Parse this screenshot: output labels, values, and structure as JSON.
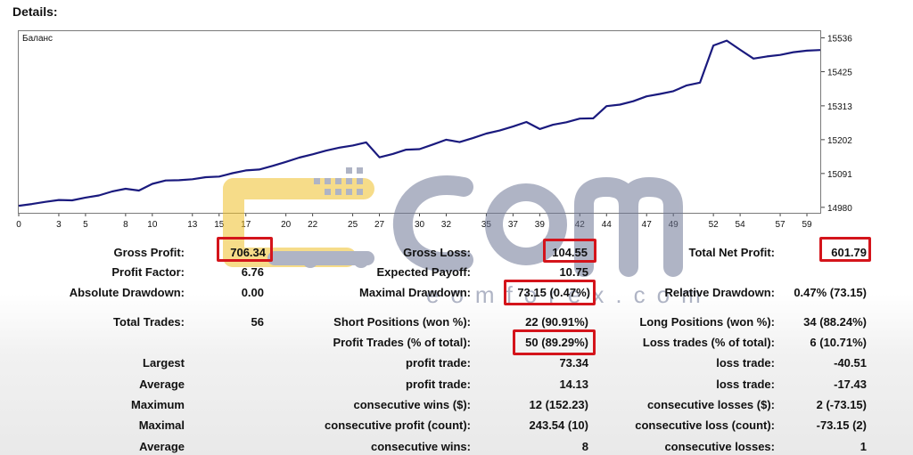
{
  "header": {
    "title": "Details:"
  },
  "chart_data": {
    "type": "line",
    "title": "Баланс",
    "y_ticks": [
      "15536",
      "15425",
      "15313",
      "15202",
      "15091",
      "14980"
    ],
    "y_tick_values": [
      15536,
      15425,
      15313,
      15202,
      15091,
      14980
    ],
    "ylim": [
      14962,
      15558
    ],
    "xlim": [
      0,
      60
    ],
    "x_ticks": [
      "0",
      "3",
      "5",
      "8",
      "10",
      "13",
      "15",
      "17",
      "20",
      "22",
      "25",
      "27",
      "30",
      "32",
      "35",
      "37",
      "39",
      "42",
      "44",
      "47",
      "49",
      "52",
      "54",
      "57",
      "59"
    ],
    "series": [
      {
        "x": [
          0,
          1,
          2,
          3,
          4,
          5,
          6,
          7,
          8,
          9,
          10,
          11,
          12,
          13,
          14,
          15,
          16,
          17,
          18,
          19,
          20,
          21,
          22,
          23,
          24,
          25,
          26,
          27,
          28,
          29,
          30,
          31,
          32,
          33,
          34,
          35,
          36,
          37,
          38,
          39,
          40,
          41,
          42,
          43,
          44,
          45,
          46,
          47,
          48,
          49,
          50,
          51,
          52,
          53,
          54,
          55,
          56,
          57,
          58,
          59,
          60
        ],
        "values": [
          14985,
          14991,
          14998,
          15004,
          15003,
          15012,
          15019,
          15032,
          15041,
          15035,
          15057,
          15068,
          15069,
          15072,
          15079,
          15081,
          15092,
          15101,
          15104,
          15116,
          15129,
          15143,
          15154,
          15166,
          15176,
          15183,
          15193,
          15144,
          15155,
          15169,
          15171,
          15186,
          15202,
          15194,
          15207,
          15222,
          15232,
          15245,
          15260,
          15237,
          15251,
          15259,
          15271,
          15272,
          15312,
          15317,
          15328,
          15344,
          15352,
          15361,
          15380,
          15389,
          15511,
          15527,
          15497,
          15468,
          15475,
          15480,
          15489,
          15494,
          15496
        ],
        "color": "#1a1a7e"
      }
    ]
  },
  "stats": {
    "gross_profit_label": "Gross Profit:",
    "gross_profit": "706.34",
    "gross_loss_label": "Gross Loss:",
    "gross_loss": "104.55",
    "total_net_profit_label": "Total Net Profit:",
    "total_net_profit": "601.79",
    "profit_factor_label": "Profit Factor:",
    "profit_factor": "6.76",
    "expected_payoff_label": "Expected Payoff:",
    "expected_payoff": "10.75",
    "absolute_drawdown_label": "Absolute Drawdown:",
    "absolute_drawdown": "0.00",
    "maximal_drawdown_label": "Maximal Drawdown:",
    "maximal_drawdown": "73.15 (0.47%)",
    "relative_drawdown_label": "Relative Drawdown:",
    "relative_drawdown": "0.47% (73.15)",
    "total_trades_label": "Total Trades:",
    "total_trades": "56",
    "short_positions_label": "Short Positions (won %):",
    "short_positions": "22 (90.91%)",
    "long_positions_label": "Long Positions (won %):",
    "long_positions": "34 (88.24%)",
    "profit_trades_label": "Profit Trades (% of total):",
    "profit_trades": "50 (89.29%)",
    "loss_trades_label": "Loss trades (% of total):",
    "loss_trades": "6 (10.71%)",
    "largest_label": "Largest",
    "largest_profit_label": "profit trade:",
    "largest_profit": "73.34",
    "largest_loss_label": "loss trade:",
    "largest_loss": "-40.51",
    "average_label": "Average",
    "average_profit_label": "profit trade:",
    "average_profit": "14.13",
    "average_loss_label": "loss trade:",
    "average_loss": "-17.43",
    "maximum_label": "Maximum",
    "max_consec_wins_label": "consecutive wins ($):",
    "max_consec_wins": "12 (152.23)",
    "max_consec_losses_label": "consecutive losses ($):",
    "max_consec_losses": "2 (-73.15)",
    "maximal_label": "Maximal",
    "maximal_consec_profit_label": "consecutive profit (count):",
    "maximal_consec_profit": "243.54 (10)",
    "maximal_consec_loss_label": "consecutive loss (count):",
    "maximal_consec_loss": "-73.15 (2)",
    "average2_label": "Average",
    "avg_consec_wins_label": "consecutive wins:",
    "avg_consec_wins": "8",
    "avg_consec_losses_label": "consecutive losses:",
    "avg_consec_losses": "1"
  },
  "watermark": {
    "text": "eomforex.com",
    "color": "#6f7896",
    "accent": "#f0c12a"
  },
  "highlight_color": "#d4141b"
}
